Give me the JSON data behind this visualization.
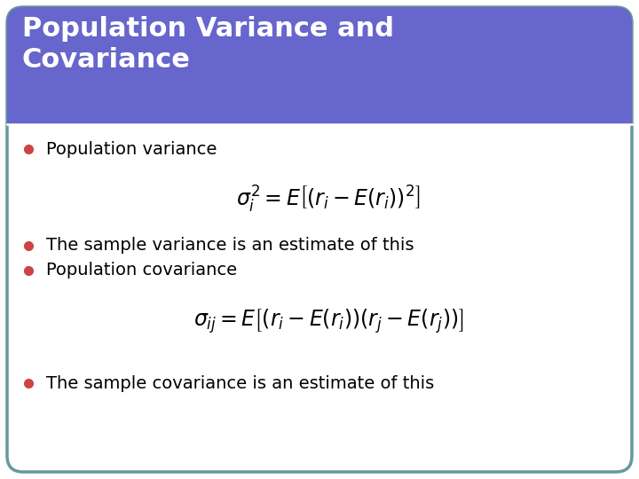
{
  "title": "Population Variance and\nCovariance",
  "title_bg_color": "#6666cc",
  "title_text_color": "#ffffff",
  "slide_bg_color": "#ffffff",
  "slide_border_color": "#669999",
  "bullet_color": "#cc4444",
  "bullet_points": [
    "Population variance",
    "The sample variance is an estimate of this",
    "Population covariance",
    "The sample covariance is an estimate of this"
  ],
  "formula1": "$\\sigma_i^2 = E\\left[(r_i - E(r_i))^2\\right]$",
  "formula2": "$\\sigma_{ij} = E\\left[(r_i - E(r_i))(r_j - E(r_j))\\right]$",
  "text_color": "#000000",
  "font_size_title": 22,
  "font_size_bullet": 14,
  "font_size_formula": 15
}
